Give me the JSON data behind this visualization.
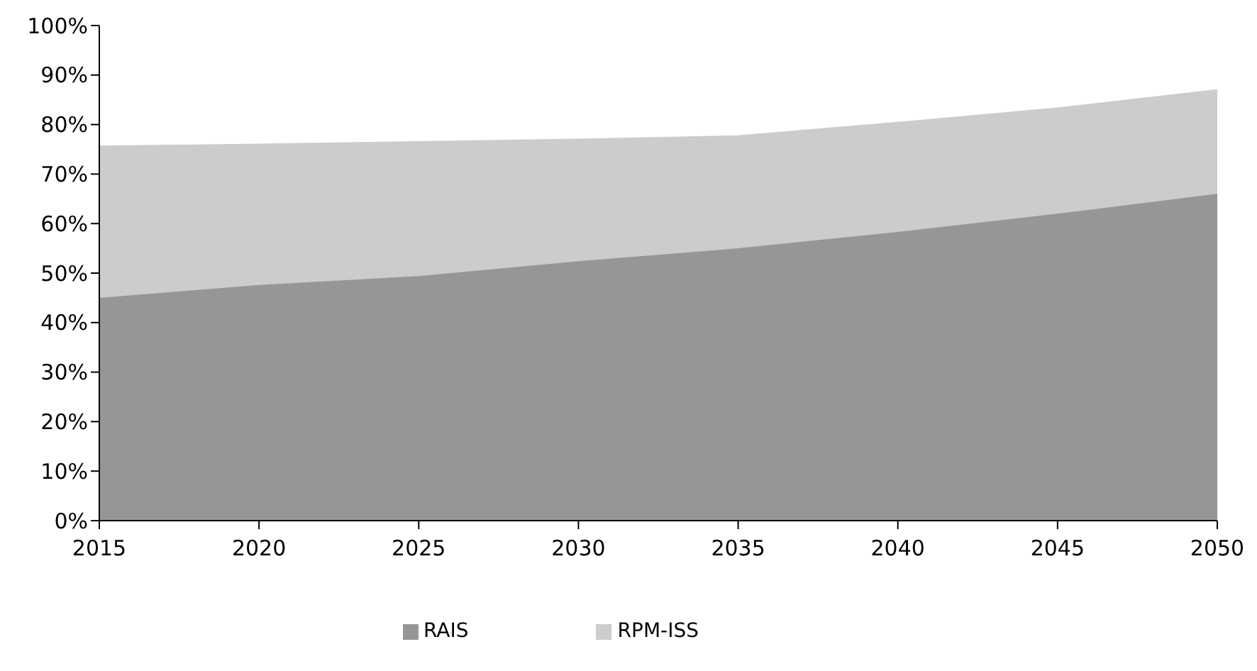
{
  "chart_data": {
    "type": "area",
    "stacked": true,
    "x": [
      2015,
      2020,
      2025,
      2030,
      2035,
      2040,
      2045,
      2050
    ],
    "series": [
      {
        "name": "RAIS",
        "color": "#969696",
        "values": [
          45,
          47.6,
          49.4,
          52.4,
          55,
          58.3,
          62,
          66
        ]
      },
      {
        "name": "RPM-ISS",
        "color": "#cccccc",
        "values": [
          30.6,
          28.4,
          27.1,
          24.6,
          22.7,
          22.1,
          21.3,
          21
        ]
      }
    ],
    "xlim": [
      2015,
      2050
    ],
    "xticks": [
      2015,
      2020,
      2025,
      2030,
      2035,
      2040,
      2045,
      2050
    ],
    "ylim": [
      0,
      100
    ],
    "yticks": [
      {
        "value": 0,
        "label": "0%"
      },
      {
        "value": 10,
        "label": "10%"
      },
      {
        "value": 20,
        "label": "20%"
      },
      {
        "value": 30,
        "label": "30%"
      },
      {
        "value": 40,
        "label": "40%"
      },
      {
        "value": 50,
        "label": "50%"
      },
      {
        "value": 60,
        "label": "60%"
      },
      {
        "value": 70,
        "label": "70%"
      },
      {
        "value": 80,
        "label": "80%"
      },
      {
        "value": 90,
        "label": "90%"
      },
      {
        "value": 100,
        "label": "100%"
      }
    ],
    "grid": false,
    "legend": "bottom"
  }
}
